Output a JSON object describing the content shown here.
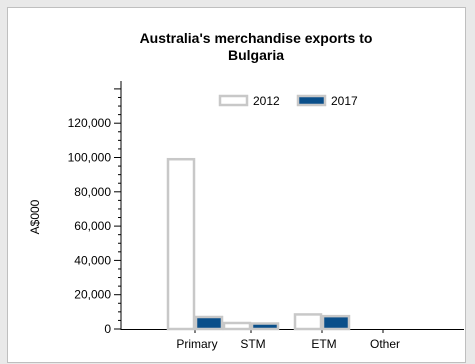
{
  "chart_data": {
    "type": "bar",
    "title": "Australia's merchandise exports to Bulgaria",
    "title_lines": [
      "Australia's merchandise exports to",
      "Bulgaria"
    ],
    "xlabel": "",
    "ylabel": "A$000",
    "categories": [
      "Primary",
      "STM",
      "ETM",
      "Other"
    ],
    "series": [
      {
        "name": "2012",
        "values": [
          99000,
          3500,
          8500,
          0
        ],
        "fill": "#ffffff",
        "stroke": "#c8c8c8"
      },
      {
        "name": "2017",
        "values": [
          7000,
          3200,
          7500,
          0
        ],
        "fill": "#0a4f8a",
        "stroke": "#c8c8c8"
      }
    ],
    "ylim": [
      0,
      140000
    ],
    "yticks": [
      0,
      20000,
      40000,
      60000,
      80000,
      100000,
      120000
    ],
    "ytick_labels": [
      "0",
      "20,000",
      "40,000",
      "60,000",
      "80,000",
      "100,000",
      "120,000"
    ],
    "grid": false,
    "legend_position": "top-center"
  }
}
